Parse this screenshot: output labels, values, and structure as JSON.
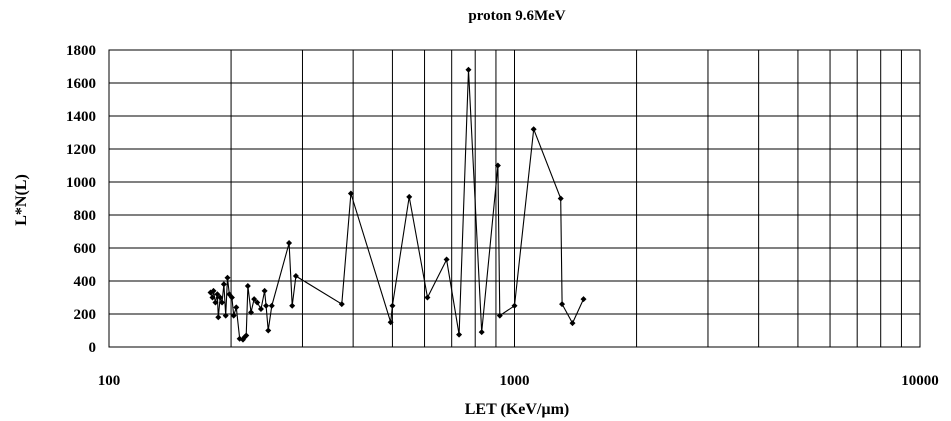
{
  "chart_data": {
    "type": "line",
    "title": "proton 9.6MeV",
    "xlabel": "LET (KeV/µm)",
    "ylabel": "L*N(L)",
    "x_scale": "log",
    "xlim": [
      100,
      10000
    ],
    "ylim": [
      0,
      1800
    ],
    "x_ticks": [
      "100",
      "1000",
      "10000"
    ],
    "y_ticks": [
      "0",
      "200",
      "400",
      "600",
      "800",
      "1000",
      "1200",
      "1400",
      "1600",
      "1800"
    ],
    "grid": {
      "x_major": true,
      "x_minor": true,
      "y_major": true
    },
    "marker": "diamond",
    "colors": {
      "line": "#000000",
      "grid": "#000000"
    },
    "series": [
      {
        "x": [
          178,
          180,
          181,
          183,
          185,
          186,
          188,
          190,
          192,
          194,
          196,
          198,
          201,
          203,
          206,
          210,
          214,
          216,
          218,
          220,
          224,
          228,
          232,
          237,
          242,
          244,
          247,
          252,
          278,
          283,
          289,
          375,
          395,
          495,
          500,
          550,
          610,
          680,
          730,
          770,
          830,
          910,
          920,
          1000,
          1115,
          1300,
          1310,
          1390,
          1480
        ],
        "y": [
          330,
          300,
          340,
          270,
          320,
          180,
          300,
          270,
          380,
          190,
          420,
          320,
          300,
          190,
          240,
          50,
          45,
          60,
          70,
          370,
          210,
          290,
          270,
          230,
          340,
          250,
          100,
          250,
          630,
          250,
          430,
          260,
          930,
          150,
          250,
          910,
          300,
          530,
          75,
          1680,
          90,
          1100,
          190,
          250,
          1320,
          900,
          260,
          145,
          290
        ]
      }
    ]
  }
}
